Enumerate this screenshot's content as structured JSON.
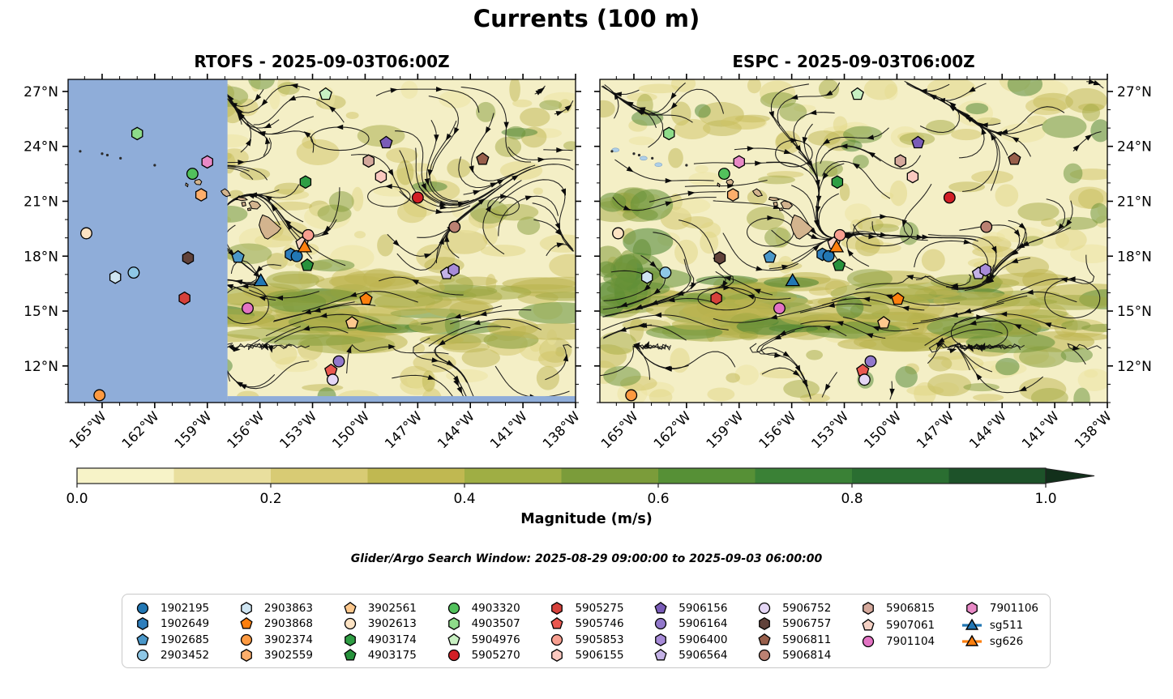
{
  "title": "Currents (100 m)",
  "panels": [
    {
      "id": "rtofs",
      "subtitle": "RTOFS - 2025-09-03T06:00Z",
      "label_side": "left",
      "has_nodata_region": true
    },
    {
      "id": "espc",
      "subtitle": "ESPC - 2025-09-03T06:00Z",
      "label_side": "right",
      "has_nodata_region": false
    }
  ],
  "axes": {
    "lon_ticks": [
      "165°W",
      "162°W",
      "159°W",
      "156°W",
      "153°W",
      "150°W",
      "147°W",
      "144°W",
      "141°W",
      "138°W"
    ],
    "lon_values": [
      165,
      162,
      159,
      156,
      153,
      150,
      147,
      144,
      141,
      138
    ],
    "lat_ticks": [
      "27°N",
      "24°N",
      "21°N",
      "18°N",
      "15°N",
      "12°N"
    ],
    "lat_values": [
      27,
      24,
      21,
      18,
      15,
      12
    ],
    "lon_range": [
      166.94,
      138.0
    ],
    "lat_range": [
      10.0,
      27.66
    ]
  },
  "colorbar": {
    "label": "Magnitude (m/s)",
    "ticks": [
      "0.0",
      "0.2",
      "0.4",
      "0.6",
      "0.8",
      "1.0"
    ],
    "tick_values": [
      0.0,
      0.2,
      0.4,
      0.6,
      0.8,
      1.0
    ],
    "colors": [
      "#f7f3c8",
      "#e9df9e",
      "#d8cb74",
      "#c0b851",
      "#9fae44",
      "#7b9c3a",
      "#569036",
      "#3a8136",
      "#2a6e31",
      "#1d5229"
    ],
    "arrow_color": "#12301b"
  },
  "search_window": "Glider/Argo Search Window: 2025-08-29 09:00:00 to 2025-09-03 06:00:00",
  "legend_columns": [
    [
      "1902195",
      "1902649",
      "1902685",
      "2903452"
    ],
    [
      "2903863",
      "2903868",
      "3902374",
      "3902559"
    ],
    [
      "3902561",
      "3902613",
      "4903174",
      "4903175"
    ],
    [
      "4903320",
      "4903507",
      "5904976",
      "5905270"
    ],
    [
      "5905275",
      "5905746",
      "5905853",
      "5906155"
    ],
    [
      "5906156",
      "5906164",
      "5906400",
      "5906564"
    ],
    [
      "5906752",
      "5906757",
      "5906811",
      "5906814"
    ],
    [
      "5906815",
      "5907061",
      "7901104"
    ],
    [
      "7901106",
      "sg511",
      "sg626"
    ]
  ],
  "chart_data": {
    "type": "streamline-map",
    "field_units": "m/s",
    "nodata_color": "#8fadd9",
    "ocean_base_color": "#f4efc6",
    "land_color": "#d3b48e",
    "nodata_lon_edge": 157.85,
    "nodata_bottom_lat": 10.35,
    "markers": [
      {
        "id": "3902613",
        "shape": "circle",
        "color": "#fde3c3",
        "lon": 165.9,
        "lat": 19.25
      },
      {
        "id": "4903507",
        "shape": "hexagon",
        "color": "#8edc8a",
        "lon": 163.0,
        "lat": 24.7
      },
      {
        "id": "7901106",
        "shape": "hexagon",
        "color": "#e889c6",
        "lon": 159.0,
        "lat": 23.15
      },
      {
        "id": "4903320",
        "shape": "circle",
        "color": "#52c15c",
        "lon": 159.85,
        "lat": 22.5
      },
      {
        "id": "3902559",
        "shape": "hexagon",
        "color": "#fdae6b",
        "lon": 159.35,
        "lat": 21.35
      },
      {
        "id": "5906757",
        "shape": "hexagon",
        "color": "#61423a",
        "lon": 160.1,
        "lat": 17.9
      },
      {
        "id": "2903863",
        "shape": "hexagon",
        "color": "#cfe5f2",
        "lon": 164.25,
        "lat": 16.85
      },
      {
        "id": "2903452",
        "shape": "circle",
        "color": "#8ec7e6",
        "lon": 163.2,
        "lat": 17.1
      },
      {
        "id": "5905275",
        "shape": "hexagon",
        "color": "#d6413b",
        "lon": 160.3,
        "lat": 15.7
      },
      {
        "id": "3902374",
        "shape": "circle",
        "color": "#fd9a41",
        "lon": 165.15,
        "lat": 10.4
      },
      {
        "id": "5904976",
        "shape": "pentagon",
        "color": "#c8f0c2",
        "lon": 152.25,
        "lat": 26.85
      },
      {
        "id": "5906156",
        "shape": "pentagon",
        "color": "#7a5cb8",
        "lon": 148.8,
        "lat": 24.2
      },
      {
        "id": "5906815",
        "shape": "hexagon",
        "color": "#d5a99c",
        "lon": 149.8,
        "lat": 23.2
      },
      {
        "id": "5906811",
        "shape": "pentagon",
        "color": "#985f4b",
        "lon": 143.3,
        "lat": 23.3
      },
      {
        "id": "4903174",
        "shape": "hexagon",
        "color": "#2f9e44",
        "lon": 153.4,
        "lat": 22.05
      },
      {
        "id": "5906155",
        "shape": "hexagon",
        "color": "#fbc9c0",
        "lon": 149.1,
        "lat": 22.35
      },
      {
        "id": "5905270",
        "shape": "circle",
        "color": "#d21f26",
        "lon": 147.0,
        "lat": 21.2
      },
      {
        "id": "5906814",
        "shape": "circle",
        "color": "#bb8172",
        "lon": 144.9,
        "lat": 19.6
      },
      {
        "id": "5905853",
        "shape": "circle",
        "color": "#f89f90",
        "lon": 153.25,
        "lat": 19.15
      },
      {
        "id": "1902685",
        "shape": "pentagon",
        "color": "#4a97c9",
        "lon": 157.25,
        "lat": 17.95
      },
      {
        "id": "5907061",
        "shape": "pentagon",
        "color": "#f4d1c4",
        "lon": 153.6,
        "lat": 18.7
      },
      {
        "id": "1902649",
        "shape": "hexagon",
        "color": "#2e7ebc",
        "lon": 154.25,
        "lat": 18.1
      },
      {
        "id": "1902195",
        "shape": "circle",
        "color": "#2277b4",
        "lon": 153.9,
        "lat": 18.0
      },
      {
        "id": "4903175",
        "shape": "pentagon",
        "color": "#27923c",
        "lon": 153.3,
        "lat": 17.5
      },
      {
        "id": "5906564",
        "shape": "pentagon",
        "color": "#c4b2e6",
        "lon": 145.35,
        "lat": 17.05
      },
      {
        "id": "5906400",
        "shape": "hexagon",
        "color": "#a78bd8",
        "lon": 144.95,
        "lat": 17.25
      },
      {
        "id": "7901104",
        "shape": "circle",
        "color": "#e273c3",
        "lon": 156.7,
        "lat": 15.15
      },
      {
        "id": "2903868",
        "shape": "pentagon",
        "color": "#fd7f0e",
        "lon": 149.95,
        "lat": 15.65
      },
      {
        "id": "3902561",
        "shape": "pentagon",
        "color": "#fdc88d",
        "lon": 150.75,
        "lat": 14.35
      },
      {
        "id": "5906164",
        "shape": "circle",
        "color": "#9278cb",
        "lon": 151.5,
        "lat": 12.25
      },
      {
        "id": "5905746",
        "shape": "pentagon",
        "color": "#ea5850",
        "lon": 151.95,
        "lat": 11.75
      },
      {
        "id": "5906752",
        "shape": "circle",
        "color": "#e4d6f5",
        "lon": 151.85,
        "lat": 11.25
      },
      {
        "id": "sg511",
        "shape": "triangle",
        "color": "#2277b4",
        "lon": 155.95,
        "lat": 16.6
      },
      {
        "id": "sg626",
        "shape": "triangle",
        "color": "#fd7f0e",
        "lon": 153.45,
        "lat": 18.45
      }
    ],
    "islands": [
      {
        "name": "kauai",
        "pts": [
          [
            159.68,
            22.14
          ],
          [
            159.45,
            22.2
          ],
          [
            159.32,
            22.07
          ],
          [
            159.4,
            21.9
          ],
          [
            159.62,
            21.92
          ],
          [
            159.73,
            22.03
          ]
        ]
      },
      {
        "name": "niihau",
        "pts": [
          [
            160.22,
            21.99
          ],
          [
            160.1,
            21.92
          ],
          [
            160.12,
            21.8
          ],
          [
            160.24,
            21.87
          ]
        ]
      },
      {
        "name": "oahu",
        "pts": [
          [
            158.22,
            21.55
          ],
          [
            158.0,
            21.68
          ],
          [
            157.82,
            21.55
          ],
          [
            157.68,
            21.32
          ],
          [
            157.92,
            21.26
          ],
          [
            158.1,
            21.37
          ]
        ]
      },
      {
        "name": "molokai",
        "pts": [
          [
            157.25,
            21.22
          ],
          [
            156.85,
            21.18
          ],
          [
            156.73,
            21.08
          ],
          [
            157.05,
            21.03
          ],
          [
            157.3,
            21.1
          ]
        ]
      },
      {
        "name": "lanai",
        "pts": [
          [
            157.04,
            20.93
          ],
          [
            156.85,
            20.96
          ],
          [
            156.8,
            20.77
          ],
          [
            156.99,
            20.73
          ]
        ]
      },
      {
        "name": "maui",
        "pts": [
          [
            156.62,
            20.9
          ],
          [
            156.44,
            21.02
          ],
          [
            156.14,
            20.95
          ],
          [
            155.96,
            20.76
          ],
          [
            156.16,
            20.58
          ],
          [
            156.46,
            20.6
          ],
          [
            156.55,
            20.78
          ]
        ]
      },
      {
        "name": "kahoolawe",
        "pts": [
          [
            156.7,
            20.6
          ],
          [
            156.55,
            20.63
          ],
          [
            156.52,
            20.51
          ],
          [
            156.68,
            20.5
          ]
        ]
      },
      {
        "name": "hawaii",
        "pts": [
          [
            155.85,
            20.25
          ],
          [
            155.5,
            20.12
          ],
          [
            155.05,
            19.73
          ],
          [
            154.8,
            19.52
          ],
          [
            155.0,
            19.3
          ],
          [
            155.3,
            19.1
          ],
          [
            155.55,
            18.93
          ],
          [
            155.72,
            19.0
          ],
          [
            155.92,
            19.32
          ],
          [
            156.05,
            19.7
          ],
          [
            155.96,
            20.02
          ]
        ]
      }
    ],
    "islets": [
      [
        166.25,
        23.73
      ],
      [
        165.0,
        23.6
      ],
      [
        164.7,
        23.52
      ],
      [
        163.95,
        23.35
      ],
      [
        162.0,
        22.97
      ]
    ],
    "shoals_espc": [
      [
        166.05,
        23.8
      ],
      [
        164.45,
        23.35
      ],
      [
        163.6,
        23.0
      ]
    ]
  }
}
